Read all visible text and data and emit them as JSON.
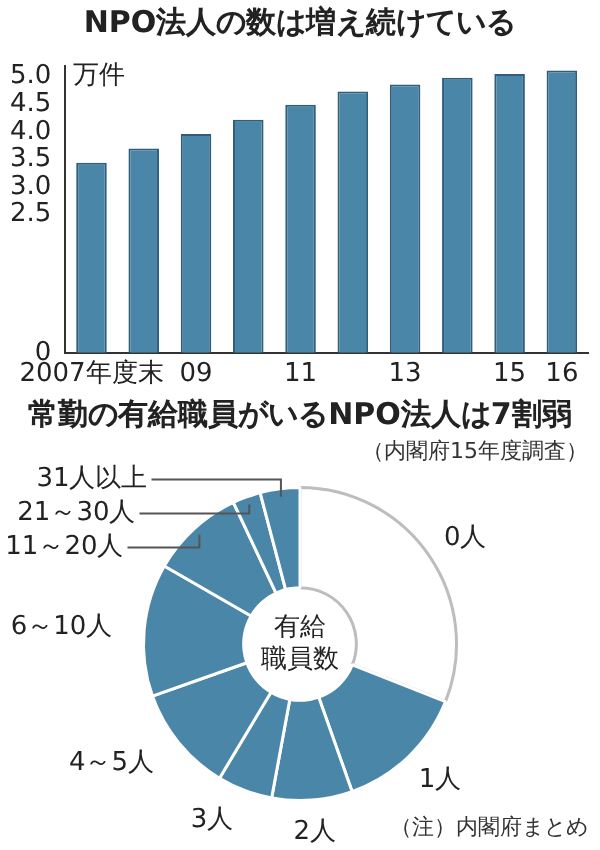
{
  "chart_data": [
    {
      "type": "bar",
      "title": "NPO法人の数は増え続けている",
      "ylabel": "万件",
      "categories": [
        "2007年度末",
        null,
        "09",
        null,
        "11",
        null,
        "13",
        null,
        "15",
        "16"
      ],
      "values": [
        3.44,
        3.7,
        3.96,
        4.22,
        4.49,
        4.73,
        4.86,
        4.98,
        5.05,
        5.11
      ],
      "color": "#4a86a8",
      "ylim": [
        0,
        5.2
      ],
      "yticks": [
        0,
        {
          "value": 2.5,
          "label": "2.5"
        },
        {
          "value": 3,
          "label": "3.0"
        },
        {
          "value": 3.5,
          "label": "3.5"
        },
        {
          "value": 4,
          "label": "4.0"
        },
        {
          "value": 4.5,
          "label": "4.5"
        },
        {
          "value": 5,
          "label": "5.0"
        }
      ],
      "grid": false,
      "legend": false
    },
    {
      "type": "donut",
      "title": "常勤の有給職員がいるNPO法人は7割弱",
      "subtitle": "（内閣府15年度調査）",
      "categories": [
        "0人",
        "1人",
        "2人",
        "3人",
        "4～5人",
        "6～10人",
        "11～20人",
        "21～30人",
        "31人以上"
      ],
      "values": [
        31,
        13.6,
        8.3,
        5.7,
        11,
        13.7,
        9.7,
        2.9,
        4.1
      ],
      "colors": [
        "#ffffff",
        "#4a86a8",
        "#4a86a8",
        "#4a86a8",
        "#4a86a8",
        "#4a86a8",
        "#4a86a8",
        "#4a86a8",
        "#4a86a8"
      ],
      "annotations": [
        "有給",
        "職員数",
        "（注）内閣府まとめ"
      ],
      "legend": false
    }
  ]
}
